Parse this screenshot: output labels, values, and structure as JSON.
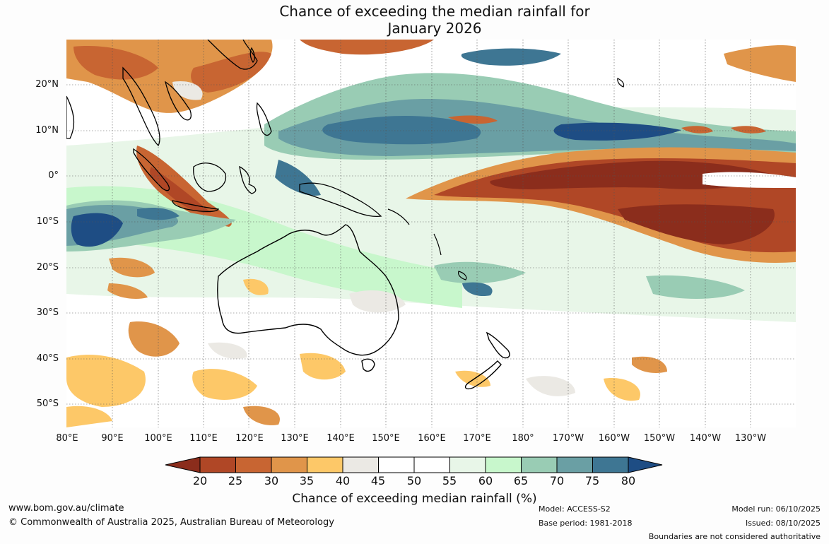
{
  "title_line1": "Chance of exceeding the median rainfall for",
  "title_line2": "January 2026",
  "lat_labels": [
    "20°N",
    "10°N",
    "0°",
    "10°S",
    "20°S",
    "30°S",
    "40°S",
    "50°S"
  ],
  "lon_labels": [
    "80°E",
    "90°E",
    "100°E",
    "110°E",
    "120°E",
    "130°E",
    "140°E",
    "150°E",
    "160°E",
    "170°E",
    "180°",
    "170°W",
    "160°W",
    "150°W",
    "140°W",
    "130°W"
  ],
  "colorbar": {
    "ticks": [
      "20",
      "25",
      "30",
      "35",
      "40",
      "45",
      "50",
      "55",
      "60",
      "65",
      "70",
      "75",
      "80"
    ],
    "colors": [
      "#8b2d1c",
      "#b04726",
      "#c86532",
      "#e0954a",
      "#fdc868",
      "#ebe9e4",
      "#ffffff",
      "#ffffff",
      "#e8f6e8",
      "#c8f7cc",
      "#99ccb4",
      "#6a9fa4",
      "#3e7693",
      "#1e4d84"
    ],
    "label": "Chance of exceeding median rainfall (%)"
  },
  "footer": {
    "website": "www.bom.gov.au/climate",
    "copyright": "© Commonwealth of Australia 2025, Australian Bureau of Meteorology",
    "model": "Model: ACCESS-S2",
    "base_period": "Base period: 1981-2018",
    "model_run": "Model run: 06/10/2025",
    "issued": "Issued: 08/10/2025",
    "disclaimer": "Boundaries are not considered authoritative"
  }
}
